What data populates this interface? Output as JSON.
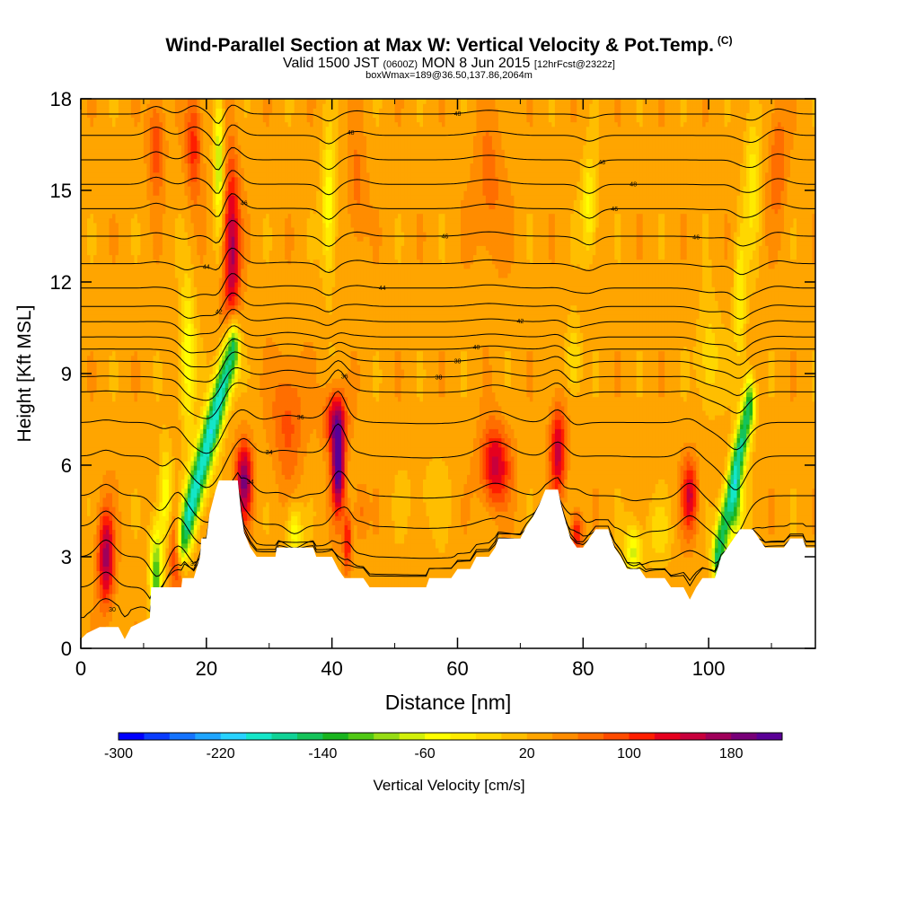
{
  "header": {
    "title": "Wind-Parallel Section at Max W: Vertical Velocity & Pot.Temp.",
    "copyright": "(C)",
    "valid_prefix": "Valid 1500 JST",
    "utc": "(0600Z)",
    "valid_date": "MON 8 Jun 2015",
    "forecast": "[12hrFcst@2322z]",
    "box_info": "boxWmax=189@36.50,137.86,2064m"
  },
  "chart_data": {
    "type": "heatmap",
    "title": "Wind-Parallel Section at Max W: Vertical Velocity & Pot.Temp.",
    "xlabel": "Distance [nm]",
    "ylabel": "Height [Kft MSL]",
    "xlim": [
      0,
      117
    ],
    "ylim": [
      0,
      18
    ],
    "x_ticks": [
      0,
      20,
      40,
      60,
      80,
      100
    ],
    "y_ticks": [
      0,
      3,
      6,
      9,
      12,
      15,
      18
    ],
    "colorbar": {
      "label": "Vertical Velocity [cm/s]",
      "min": -300,
      "max": 220,
      "step": 20,
      "tick_values": [
        -300,
        -220,
        -140,
        -60,
        20,
        100,
        180
      ],
      "colors": [
        "#0000ff",
        "#0a3cff",
        "#1473ff",
        "#1ea5ff",
        "#28d2ff",
        "#14e6c8",
        "#10d296",
        "#14c35a",
        "#19b41e",
        "#50c814",
        "#96dc14",
        "#d2f00a",
        "#ffff00",
        "#ffeb00",
        "#ffd700",
        "#ffbe00",
        "#ffa500",
        "#ff8c00",
        "#ff6e00",
        "#ff4b00",
        "#ff1e00",
        "#e6001e",
        "#c8003c",
        "#a0005a",
        "#780078",
        "#5a0096"
      ]
    },
    "terrain_kft": [
      [
        0,
        0.3
      ],
      [
        1,
        0.5
      ],
      [
        3,
        0.7
      ],
      [
        6,
        0.7
      ],
      [
        7,
        0.3
      ],
      [
        8,
        0.7
      ],
      [
        11,
        1.0
      ],
      [
        11.2,
        2.0
      ],
      [
        16,
        2.0
      ],
      [
        16.2,
        2.3
      ],
      [
        18,
        2.3
      ],
      [
        19,
        3.0
      ],
      [
        19.2,
        3.6
      ],
      [
        20,
        3.6
      ],
      [
        20.5,
        4.4
      ],
      [
        21.5,
        5.2
      ],
      [
        22,
        5.5
      ],
      [
        25,
        5.5
      ],
      [
        25.5,
        4.5
      ],
      [
        26,
        3.8
      ],
      [
        27,
        3.3
      ],
      [
        28,
        3.0
      ],
      [
        31,
        3.0
      ],
      [
        31.2,
        3.3
      ],
      [
        37,
        3.3
      ],
      [
        37.5,
        3.0
      ],
      [
        40,
        3.0
      ],
      [
        41,
        2.6
      ],
      [
        42,
        2.3
      ],
      [
        45,
        2.3
      ],
      [
        46,
        2.0
      ],
      [
        55,
        2.0
      ],
      [
        55.5,
        2.3
      ],
      [
        59,
        2.3
      ],
      [
        60,
        2.6
      ],
      [
        62,
        2.6
      ],
      [
        63,
        3.0
      ],
      [
        65,
        3.0
      ],
      [
        66,
        3.3
      ],
      [
        66.5,
        3.6
      ],
      [
        70,
        3.6
      ],
      [
        71,
        4.0
      ],
      [
        72,
        4.3
      ],
      [
        73,
        4.7
      ],
      [
        74,
        5.2
      ],
      [
        76,
        5.2
      ],
      [
        76.5,
        4.7
      ],
      [
        77,
        4.3
      ],
      [
        78,
        3.6
      ],
      [
        79,
        3.3
      ],
      [
        80,
        3.3
      ],
      [
        81,
        3.6
      ],
      [
        82,
        3.9
      ],
      [
        84,
        3.9
      ],
      [
        85,
        3.3
      ],
      [
        86,
        3.0
      ],
      [
        87,
        2.6
      ],
      [
        89,
        2.6
      ],
      [
        90,
        2.3
      ],
      [
        93,
        2.3
      ],
      [
        94,
        2.0
      ],
      [
        96,
        2.0
      ],
      [
        97,
        1.6
      ],
      [
        98,
        2.0
      ],
      [
        99,
        2.3
      ],
      [
        101,
        2.3
      ],
      [
        102,
        3.0
      ],
      [
        104,
        3.6
      ],
      [
        105,
        3.9
      ],
      [
        107,
        3.9
      ],
      [
        108,
        3.6
      ],
      [
        109,
        3.3
      ],
      [
        112,
        3.3
      ],
      [
        113,
        3.6
      ],
      [
        115,
        3.6
      ],
      [
        115.5,
        3.3
      ],
      [
        117,
        3.3
      ]
    ],
    "w_features": [
      {
        "x": 4,
        "z": 3.0,
        "sx": 1.3,
        "sz": 1.6,
        "w": 140
      },
      {
        "x": 12,
        "z": 2.5,
        "sx": 1.0,
        "sz": 1.6,
        "w": -150
      },
      {
        "x": 13.5,
        "z": 5.0,
        "sx": 1.0,
        "sz": 1.5,
        "w": -90
      },
      {
        "x": 15.5,
        "z": 3.3,
        "sx": 1.3,
        "sz": 1.4,
        "w": 120
      },
      {
        "x": 17,
        "z": 9.5,
        "sx": 1.2,
        "sz": 2.5,
        "w": -90
      },
      {
        "x": 12,
        "z": 16.5,
        "sx": 1.3,
        "sz": 1.6,
        "w": 70
      },
      {
        "x": 18,
        "z": 16.5,
        "sx": 1.3,
        "sz": 1.8,
        "w": 80
      },
      {
        "x": 22,
        "z": 16.0,
        "sx": 0.8,
        "sz": 2.2,
        "w": -120
      },
      {
        "x": 24,
        "z": 13.0,
        "sx": 1.3,
        "sz": 3.0,
        "w": 140
      },
      {
        "x": 26,
        "z": 5.5,
        "sx": 1.3,
        "sz": 1.3,
        "w": 150
      },
      {
        "x": 33,
        "z": 7.5,
        "sx": 2.5,
        "sz": 2.0,
        "w": 60
      },
      {
        "x": 34,
        "z": 3.8,
        "sx": 1.2,
        "sz": 0.9,
        "w": -90
      },
      {
        "x": 39.5,
        "z": 14.5,
        "sx": 1.1,
        "sz": 2.3,
        "w": -90
      },
      {
        "x": 44,
        "z": 15.0,
        "sx": 1.5,
        "sz": 2.0,
        "w": 40
      },
      {
        "x": 41,
        "z": 6.0,
        "sx": 1.0,
        "sz": 1.5,
        "w": 195
      },
      {
        "x": 40.5,
        "z": 7.5,
        "sx": 1.8,
        "sz": 1.0,
        "w": 110
      },
      {
        "x": 42.5,
        "z": 3.5,
        "sx": 0.7,
        "sz": 1.0,
        "w": 100
      },
      {
        "x": 44.5,
        "z": 4.5,
        "sx": 1.0,
        "sz": 1.0,
        "w": 40
      },
      {
        "x": 55,
        "z": 5.0,
        "sx": 3.5,
        "sz": 1.5,
        "w": -20
      },
      {
        "x": 66,
        "z": 6.0,
        "sx": 2.3,
        "sz": 1.3,
        "w": 120
      },
      {
        "x": 65,
        "z": 15.0,
        "sx": 2.5,
        "sz": 2.5,
        "w": 40
      },
      {
        "x": 76,
        "z": 6.5,
        "sx": 1.3,
        "sz": 1.5,
        "w": 120
      },
      {
        "x": 79,
        "z": 3.8,
        "sx": 0.9,
        "sz": 0.7,
        "w": 100
      },
      {
        "x": 78.5,
        "z": 9.5,
        "sx": 1.2,
        "sz": 1.3,
        "w": -60
      },
      {
        "x": 81,
        "z": 14.5,
        "sx": 1.2,
        "sz": 1.6,
        "w": -80
      },
      {
        "x": 88,
        "z": 3.2,
        "sx": 1.3,
        "sz": 0.9,
        "w": -100
      },
      {
        "x": 92,
        "z": 3.8,
        "sx": 2.0,
        "sz": 1.0,
        "w": -40
      },
      {
        "x": 97,
        "z": 5.0,
        "sx": 1.3,
        "sz": 1.2,
        "w": 110
      },
      {
        "x": 100,
        "z": 9.5,
        "sx": 1.8,
        "sz": 1.8,
        "w": -50
      },
      {
        "x": 105,
        "z": 11.5,
        "sx": 1.0,
        "sz": 2.2,
        "w": -70
      },
      {
        "x": 104.5,
        "z": 4.5,
        "sx": 1.0,
        "sz": 1.3,
        "w": -100
      },
      {
        "x": 107,
        "z": 15.5,
        "sx": 1.3,
        "sz": 2.5,
        "w": -60
      },
      {
        "x": 111,
        "z": 16.0,
        "sx": 1.5,
        "sz": 2.0,
        "w": 50
      }
    ],
    "w_bands": [
      {
        "x0": 24.2,
        "z0": 9.8,
        "x1": 16.2,
        "z1": 3.6,
        "width": 1.0,
        "w": -230
      },
      {
        "x0": 106.5,
        "z0": 8.0,
        "x1": 101.5,
        "z1": 3.0,
        "width": 0.9,
        "w": -190
      }
    ],
    "w_base": 30,
    "theta_K": {
      "label_values": [
        30,
        32,
        34,
        36,
        38,
        40,
        42,
        44,
        46,
        48
      ],
      "levels_kft": [
        1.0,
        2.0,
        3.0,
        4.0,
        5.0,
        6.3,
        7.4,
        8.4,
        8.9,
        9.4,
        9.8,
        10.2,
        10.7,
        11.2,
        11.8,
        12.6,
        13.5,
        14.4,
        15.2,
        16.0,
        16.8,
        17.5
      ]
    }
  }
}
